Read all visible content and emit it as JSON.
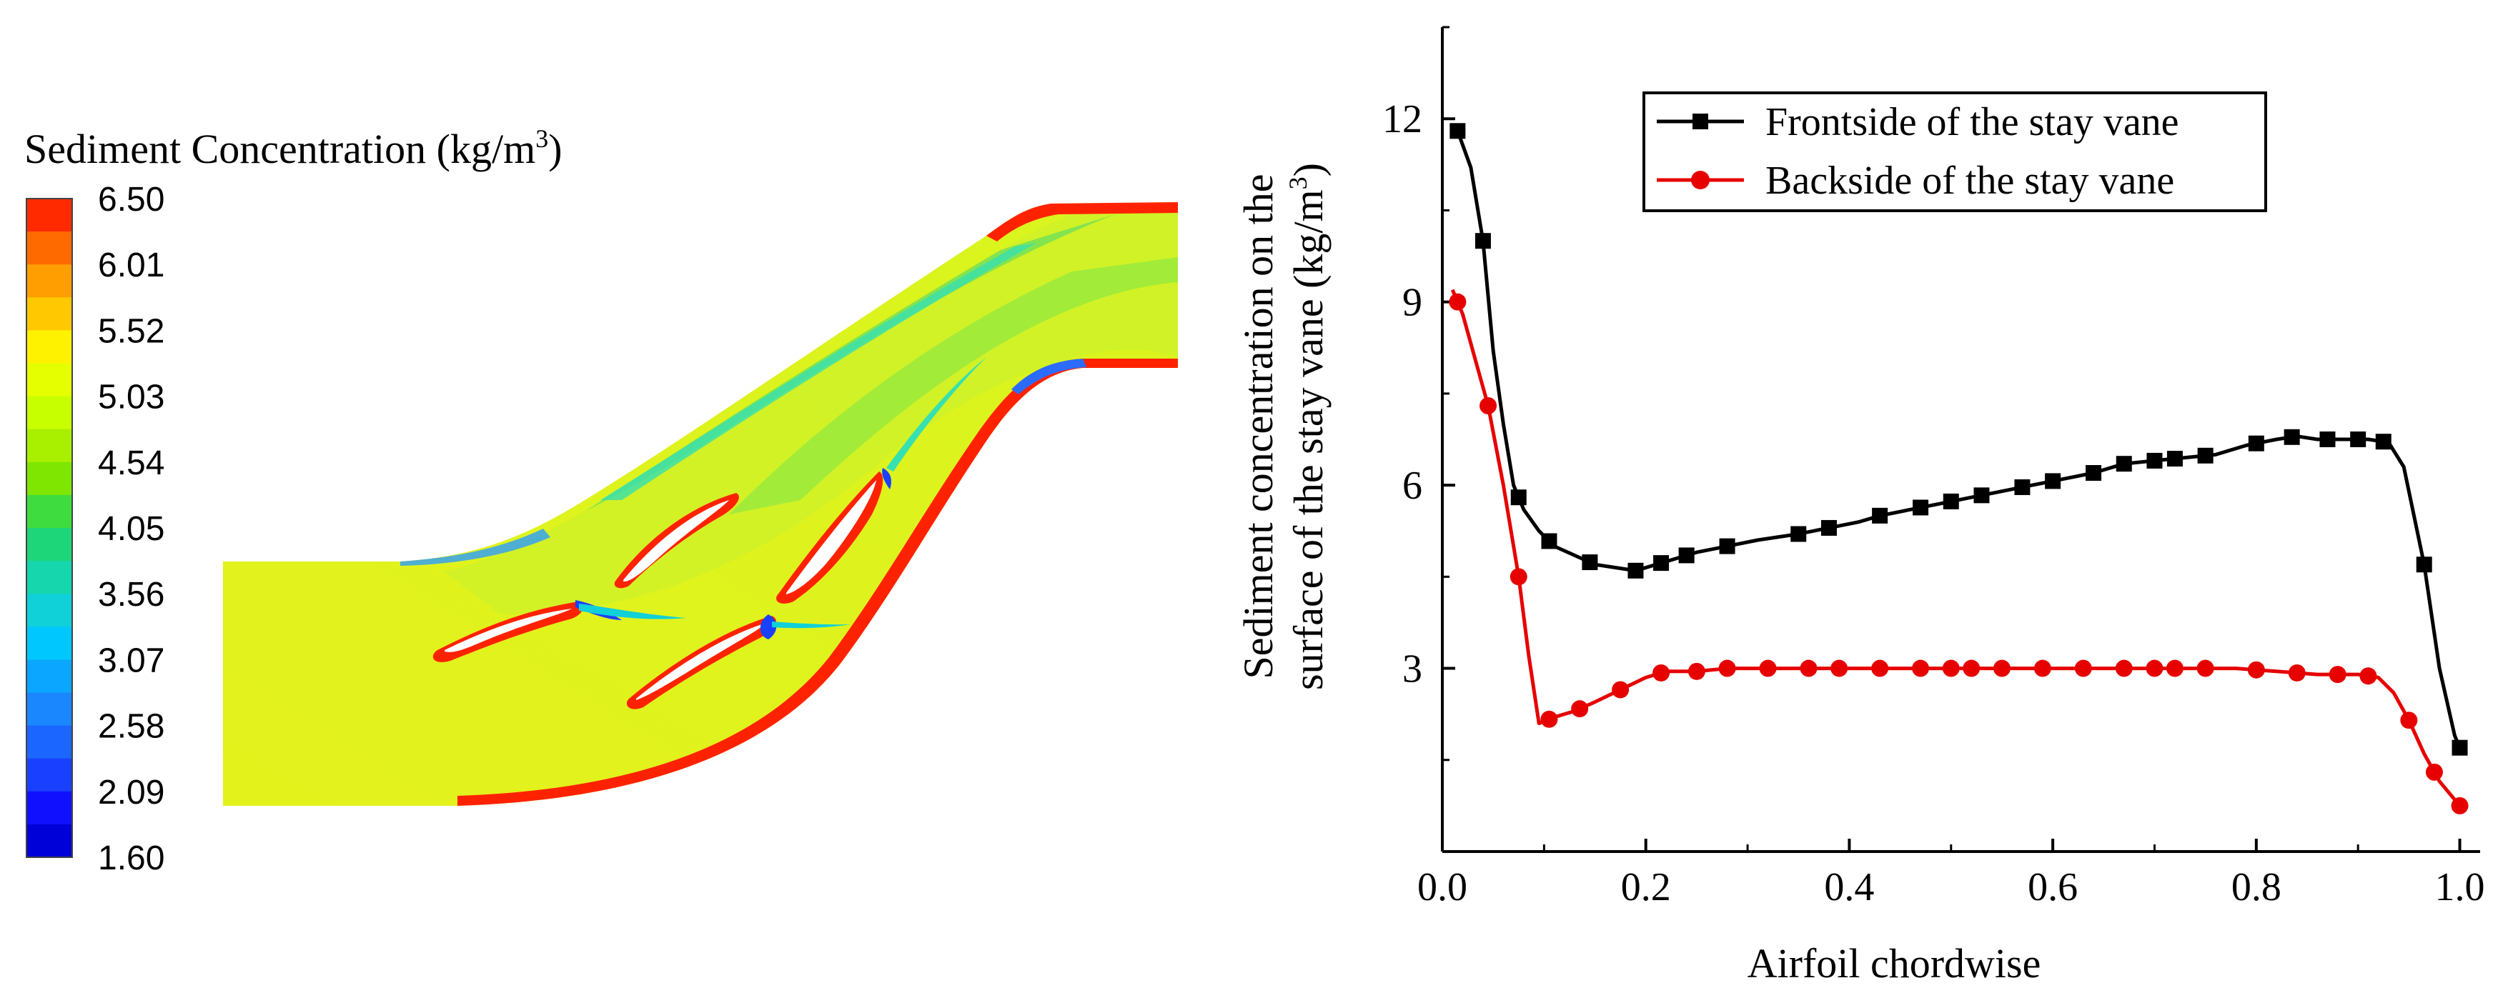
{
  "left_panel": {
    "legend_title_main": "Sediment Concentration (kg/m",
    "legend_title_sup": "3",
    "legend_title_close": ")",
    "colorbar_labels": [
      "6.50",
      "6.01",
      "5.52",
      "5.03",
      "4.54",
      "4.05",
      "3.56",
      "3.07",
      "2.58",
      "2.09",
      "1.60"
    ],
    "colorbar_colors": [
      "#ff2a00",
      "#ff6a00",
      "#ff9e00",
      "#ffc800",
      "#fff200",
      "#e6ff00",
      "#c8ff00",
      "#a8f000",
      "#7ee600",
      "#3fdc3f",
      "#1ed67a",
      "#16d6ad",
      "#10d0d8",
      "#00c8ff",
      "#0aa6ff",
      "#1a86ff",
      "#1a66ff",
      "#1a40ff",
      "#1010ff",
      "#0000d8"
    ],
    "field_colors": {
      "bulk": "#e4f21c",
      "mid": "#c9f02a",
      "green": "#6fe05a",
      "teal": "#36e0b0",
      "blue": "#2b6cff",
      "red": "#ff2200",
      "orange": "#ff9a00"
    }
  },
  "chart_data": {
    "type": "line",
    "xlabel": "Airfoil chordwise",
    "ylabel_line1": "Sediment concentration on the",
    "ylabel_line2": "surface of the stay vane (kg/m",
    "ylabel_sup": "3",
    "ylabel_close": ")",
    "xlim": [
      0.0,
      1.02
    ],
    "ylim": [
      0.0,
      13.5
    ],
    "xticks": [
      0.0,
      0.2,
      0.4,
      0.6,
      0.8,
      1.0
    ],
    "xtick_labels": [
      "0.0",
      "0.2",
      "0.4",
      "0.6",
      "0.8",
      "1.0"
    ],
    "yticks": [
      3,
      6,
      9,
      12
    ],
    "ytick_labels": [
      "3",
      "6",
      "9",
      "12"
    ],
    "legend_position": "top-right",
    "series": [
      {
        "name": "Frontside of the stay vane",
        "color": "#000000",
        "marker": "square",
        "x": [
          0.015,
          0.028,
          0.04,
          0.05,
          0.06,
          0.07,
          0.08,
          0.095,
          0.11,
          0.13,
          0.15,
          0.17,
          0.19,
          0.22,
          0.25,
          0.28,
          0.31,
          0.35,
          0.38,
          0.41,
          0.43,
          0.46,
          0.49,
          0.52,
          0.55,
          0.58,
          0.61,
          0.64,
          0.67,
          0.7,
          0.73,
          0.76,
          0.79,
          0.82,
          0.84,
          0.86,
          0.89,
          0.91,
          0.93,
          0.945,
          0.965,
          0.98,
          0.995,
          1.0
        ],
        "y": [
          11.8,
          11.2,
          10.0,
          8.2,
          7.0,
          6.0,
          5.6,
          5.25,
          5.0,
          4.85,
          4.7,
          4.65,
          4.6,
          4.75,
          4.9,
          5.0,
          5.1,
          5.2,
          5.3,
          5.4,
          5.5,
          5.6,
          5.7,
          5.8,
          5.9,
          6.0,
          6.1,
          6.2,
          6.35,
          6.4,
          6.45,
          6.5,
          6.65,
          6.75,
          6.8,
          6.75,
          6.75,
          6.75,
          6.7,
          6.3,
          4.7,
          3.0,
          1.9,
          1.7
        ]
      },
      {
        "name": "Backside of the stay vane",
        "color": "#e60000",
        "marker": "circle",
        "x": [
          0.01,
          0.02,
          0.03,
          0.045,
          0.06,
          0.075,
          0.085,
          0.095,
          0.11,
          0.13,
          0.15,
          0.175,
          0.2,
          0.22,
          0.25,
          0.28,
          0.31,
          0.35,
          0.38,
          0.42,
          0.46,
          0.5,
          0.54,
          0.58,
          0.62,
          0.66,
          0.7,
          0.74,
          0.78,
          0.82,
          0.86,
          0.9,
          0.92,
          0.935,
          0.95,
          0.965,
          0.98,
          0.995,
          1.0
        ],
        "y": [
          9.2,
          8.8,
          8.2,
          7.3,
          6.0,
          4.5,
          3.2,
          2.1,
          2.2,
          2.3,
          2.45,
          2.65,
          2.85,
          2.95,
          2.95,
          3.0,
          3.0,
          3.0,
          3.0,
          3.0,
          3.0,
          3.0,
          3.0,
          3.0,
          3.0,
          3.0,
          3.0,
          3.0,
          3.0,
          2.95,
          2.9,
          2.9,
          2.85,
          2.6,
          2.15,
          1.6,
          1.15,
          0.85,
          0.75
        ]
      }
    ],
    "marker_x_front": [
      0.015,
      0.04,
      0.075,
      0.105,
      0.145,
      0.19,
      0.215,
      0.24,
      0.28,
      0.35,
      0.38,
      0.43,
      0.47,
      0.5,
      0.53,
      0.57,
      0.6,
      0.64,
      0.67,
      0.7,
      0.72,
      0.75,
      0.8,
      0.835,
      0.87,
      0.9,
      0.925,
      0.965,
      1.0
    ],
    "marker_x_back": [
      0.015,
      0.045,
      0.075,
      0.105,
      0.135,
      0.175,
      0.215,
      0.25,
      0.28,
      0.32,
      0.36,
      0.39,
      0.43,
      0.47,
      0.5,
      0.52,
      0.55,
      0.59,
      0.63,
      0.67,
      0.7,
      0.72,
      0.75,
      0.8,
      0.84,
      0.88,
      0.91,
      0.95,
      0.975,
      1.0
    ]
  }
}
